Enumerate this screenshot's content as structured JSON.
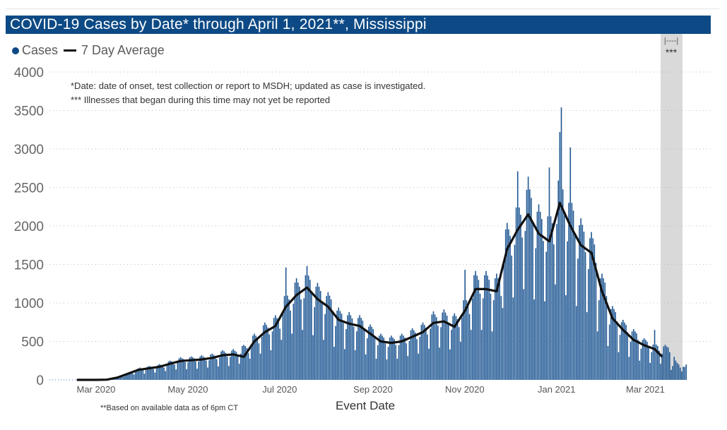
{
  "title": "COVID-19 Cases by Date* through April 1, 2021**, Mississippi",
  "legend": {
    "cases": "Cases",
    "average": "7 Day Average"
  },
  "notes": {
    "date_note": "*Date: date of onset, test collection or report to MSDH; updated as case is investigated.",
    "illness_note": "*** Illnesses that began during this time may not yet be reported",
    "shaded_bracket": "|----|",
    "shaded_label": "***",
    "footnote": "**Based on available data as of 6pm CT"
  },
  "colors": {
    "title_bg": "#0d4a85",
    "bars": "#1f5793",
    "average_line": "#111111",
    "shaded": "#d9d9d9"
  },
  "chart_data": {
    "type": "bar",
    "xlabel": "Event Date",
    "ylabel": "",
    "ylim": [
      0,
      4000
    ],
    "yticks": [
      "0",
      "500",
      "1000",
      "1500",
      "2000",
      "2500",
      "3000",
      "3500",
      "4000"
    ],
    "xticks": [
      {
        "date": "2020-03-01",
        "label": "Mar 2020"
      },
      {
        "date": "2020-05-01",
        "label": "May 2020"
      },
      {
        "date": "2020-07-01",
        "label": "Jul 2020"
      },
      {
        "date": "2020-09-01",
        "label": "Sep 2020"
      },
      {
        "date": "2020-11-01",
        "label": "Nov 2020"
      },
      {
        "date": "2021-01-01",
        "label": "Jan 2021"
      },
      {
        "date": "2021-03-01",
        "label": "Mar 2021"
      }
    ],
    "grid": "horizontal dotted",
    "legend_position": "top-left",
    "shaded_range": [
      "2021-03-14",
      "2021-03-31"
    ],
    "cases": {
      "name": "Cases",
      "start_date": "2020-03-01",
      "values": [
        0,
        0,
        0,
        0,
        0,
        0,
        0,
        0,
        0,
        0,
        1,
        5,
        4,
        8,
        10,
        12,
        14,
        20,
        30,
        50,
        60,
        40,
        60,
        80,
        90,
        100,
        95,
        85,
        70,
        110,
        140,
        150,
        160,
        150,
        130,
        80,
        130,
        170,
        180,
        175,
        170,
        140,
        95,
        150,
        195,
        205,
        195,
        190,
        160,
        115,
        190,
        240,
        250,
        240,
        230,
        200,
        135,
        220,
        280,
        295,
        280,
        270,
        230,
        140,
        230,
        290,
        305,
        295,
        280,
        240,
        145,
        240,
        305,
        320,
        305,
        290,
        250,
        160,
        255,
        330,
        340,
        325,
        310,
        270,
        175,
        290,
        370,
        385,
        370,
        350,
        300,
        180,
        300,
        380,
        400,
        380,
        365,
        310,
        210,
        340,
        440,
        455,
        440,
        415,
        350,
        275,
        450,
        575,
        600,
        575,
        550,
        475,
        340,
        560,
        710,
        745,
        715,
        680,
        590,
        385,
        630,
        805,
        840,
        805,
        770,
        665,
        520,
        855,
        1090,
        1460,
        1095,
        1045,
        900,
        600,
        990,
        1265,
        1320,
        1265,
        1210,
        1045,
        650,
        1060,
        1360,
        1480,
        1355,
        1300,
        1120,
        580,
        945,
        1210,
        1260,
        1210,
        1155,
        1000,
        520,
        855,
        1090,
        1140,
        1095,
        1045,
        900,
        430,
        700,
        900,
        940,
        895,
        860,
        740,
        400,
        660,
        840,
        880,
        840,
        800,
        690,
        385,
        630,
        805,
        840,
        805,
        770,
        665,
        330,
        540,
        690,
        720,
        690,
        660,
        570,
        275,
        450,
        575,
        600,
        575,
        550,
        475,
        265,
        430,
        550,
        575,
        550,
        530,
        455,
        275,
        450,
        575,
        600,
        575,
        550,
        475,
        310,
        505,
        645,
        670,
        645,
        615,
        530,
        340,
        560,
        715,
        745,
        715,
        680,
        590,
        405,
        665,
        850,
        890,
        850,
        815,
        705,
        420,
        685,
        875,
        915,
        875,
        835,
        720,
        395,
        650,
        830,
        865,
        830,
        790,
        685,
        495,
        810,
        1035,
        1430,
        1035,
        990,
        855,
        650,
        1060,
        1360,
        1415,
        1355,
        1300,
        1120,
        650,
        1060,
        1360,
        1415,
        1355,
        1300,
        1120,
        630,
        1035,
        1320,
        1380,
        1320,
        1265,
        1090,
        935,
        1530,
        1955,
        2040,
        1955,
        1870,
        1615,
        1070,
        1755,
        2240,
        2710,
        2240,
        2145,
        1850,
        1180,
        1935,
        2470,
        2640,
        2475,
        2365,
        2040,
        1045,
        1710,
        2185,
        2280,
        2185,
        2090,
        1805,
        1020,
        1665,
        2125,
        2760,
        2125,
        2035,
        1760,
        1240,
        2025,
        2590,
        3220,
        3540,
        2475,
        2140,
        1100,
        1800,
        2300,
        3020,
        2300,
        2200,
        1900,
        960,
        1575,
        2010,
        2100,
        2015,
        1925,
        1660,
        880,
        1440,
        1840,
        1920,
        1840,
        1760,
        1520,
        630,
        1035,
        1320,
        1380,
        1320,
        1265,
        1090,
        440,
        720,
        920,
        960,
        920,
        880,
        760,
        360,
        585,
        750,
        780,
        745,
        715,
        620,
        300,
        495,
        630,
        660,
        630,
        605,
        520,
        250,
        405,
        520,
        540,
        520,
        495,
        430,
        220,
        360,
        460,
        650,
        460,
        440,
        380,
        210,
        340,
        435,
        455,
        435,
        420,
        360,
        130,
        180,
        300,
        250,
        220,
        200,
        160,
        110,
        170,
        170,
        200
      ]
    },
    "seven_day_average": {
      "name": "7 Day Average",
      "points": [
        [
          "2020-02-20",
          0
        ],
        [
          "2020-03-04",
          0
        ],
        [
          "2020-03-11",
          3
        ],
        [
          "2020-03-18",
          30
        ],
        [
          "2020-03-25",
          80
        ],
        [
          "2020-04-01",
          130
        ],
        [
          "2020-04-08",
          150
        ],
        [
          "2020-04-15",
          170
        ],
        [
          "2020-04-22",
          210
        ],
        [
          "2020-04-29",
          245
        ],
        [
          "2020-05-06",
          255
        ],
        [
          "2020-05-13",
          265
        ],
        [
          "2020-05-20",
          285
        ],
        [
          "2020-05-27",
          320
        ],
        [
          "2020-06-03",
          330
        ],
        [
          "2020-06-10",
          300
        ],
        [
          "2020-06-17",
          500
        ],
        [
          "2020-06-24",
          620
        ],
        [
          "2020-07-01",
          700
        ],
        [
          "2020-07-08",
          950
        ],
        [
          "2020-07-15",
          1100
        ],
        [
          "2020-07-22",
          1200
        ],
        [
          "2020-07-29",
          1050
        ],
        [
          "2020-08-05",
          950
        ],
        [
          "2020-08-12",
          780
        ],
        [
          "2020-08-19",
          730
        ],
        [
          "2020-08-26",
          700
        ],
        [
          "2020-09-02",
          600
        ],
        [
          "2020-09-09",
          500
        ],
        [
          "2020-09-16",
          480
        ],
        [
          "2020-09-23",
          500
        ],
        [
          "2020-09-30",
          560
        ],
        [
          "2020-10-07",
          620
        ],
        [
          "2020-10-14",
          740
        ],
        [
          "2020-10-21",
          760
        ],
        [
          "2020-10-28",
          690
        ],
        [
          "2020-11-04",
          900
        ],
        [
          "2020-11-11",
          1180
        ],
        [
          "2020-11-18",
          1180
        ],
        [
          "2020-11-25",
          1150
        ],
        [
          "2020-12-02",
          1700
        ],
        [
          "2020-12-09",
          1950
        ],
        [
          "2020-12-16",
          2150
        ],
        [
          "2020-12-23",
          1900
        ],
        [
          "2020-12-30",
          1800
        ],
        [
          "2021-01-06",
          2300
        ],
        [
          "2021-01-13",
          2000
        ],
        [
          "2021-01-20",
          1750
        ],
        [
          "2021-01-27",
          1650
        ],
        [
          "2021-02-03",
          1150
        ],
        [
          "2021-02-10",
          800
        ],
        [
          "2021-02-17",
          650
        ],
        [
          "2021-02-24",
          520
        ],
        [
          "2021-03-03",
          450
        ],
        [
          "2021-03-10",
          400
        ],
        [
          "2021-03-15",
          300
        ]
      ]
    }
  }
}
